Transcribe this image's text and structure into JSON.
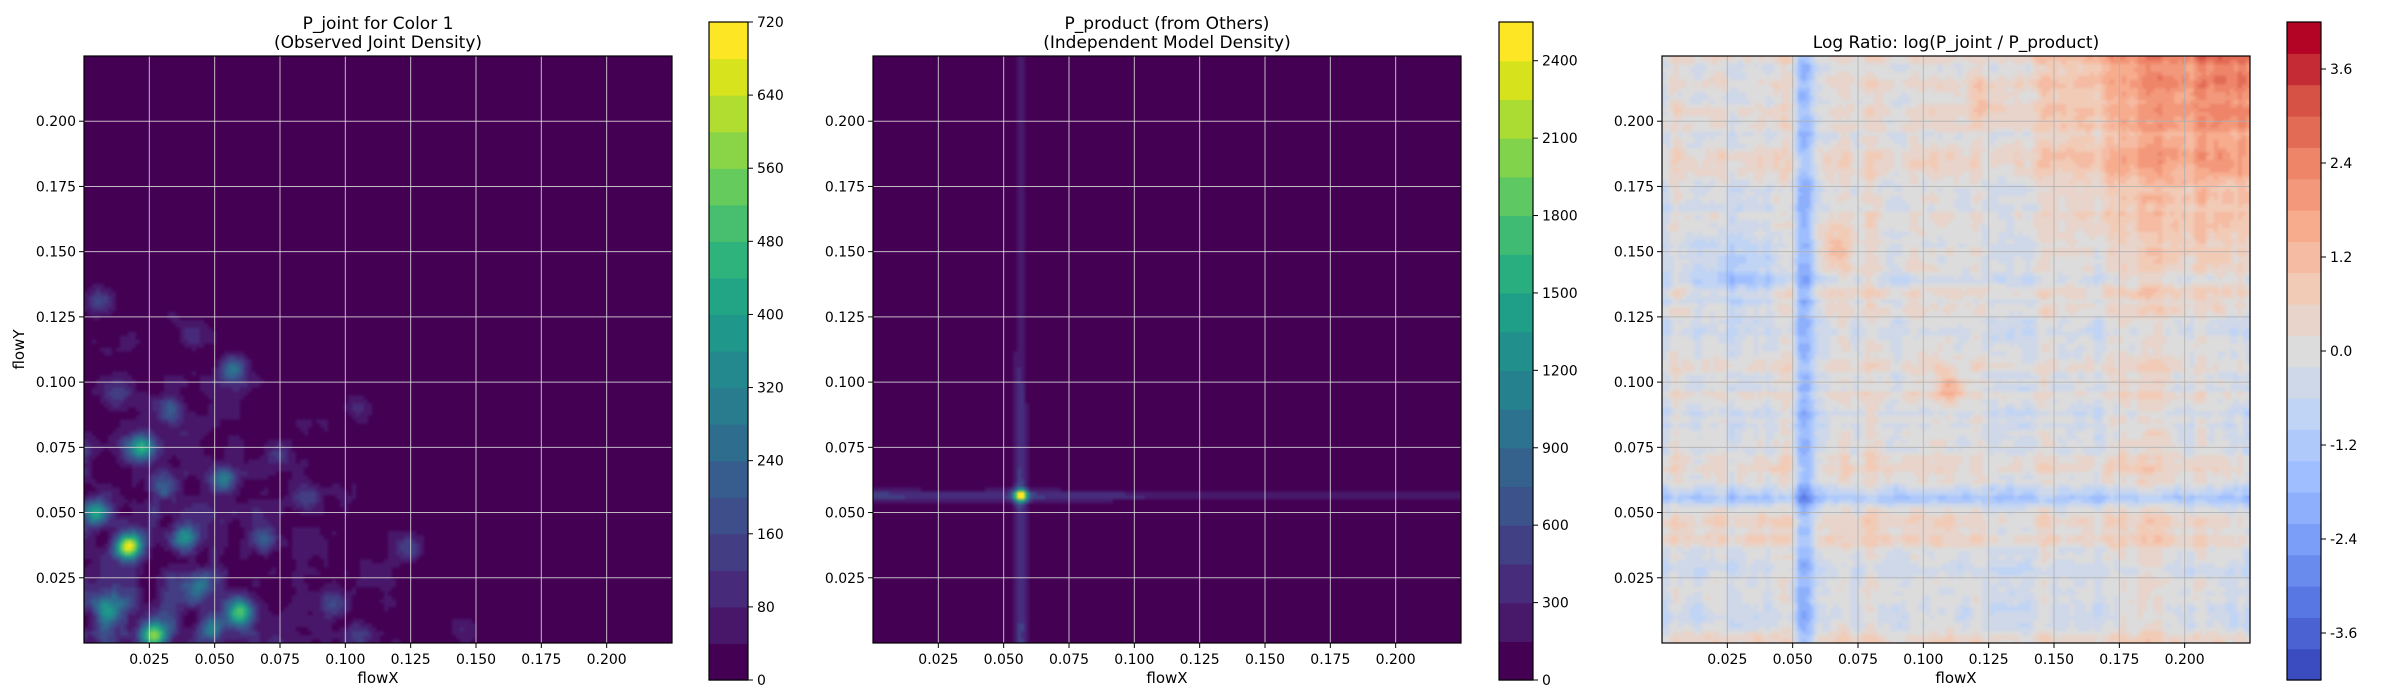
{
  "chart_data": [
    {
      "type": "heatmap",
      "title_lines": [
        "P_joint for Color 1",
        "(Observed Joint Density)"
      ],
      "xlabel": "flowX",
      "ylabel": "flowY",
      "xlim": [
        0.0,
        0.225
      ],
      "ylim": [
        0.0,
        0.225
      ],
      "x_ticks": [
        "0.025",
        "0.050",
        "0.075",
        "0.100",
        "0.125",
        "0.150",
        "0.175",
        "0.200"
      ],
      "y_ticks": [
        "0.025",
        "0.050",
        "0.075",
        "0.100",
        "0.125",
        "0.150",
        "0.175",
        "0.200"
      ],
      "grid": true,
      "colormap": "viridis",
      "colorbar": {
        "min": 0,
        "max": 720,
        "ticks": [
          "0",
          "80",
          "160",
          "240",
          "320",
          "400",
          "480",
          "560",
          "640",
          "720"
        ],
        "levels": 18,
        "colors": [
          "#440154",
          "#481a6c",
          "#472f7d",
          "#414487",
          "#39568c",
          "#31688e",
          "#2a788e",
          "#23888e",
          "#1f988b",
          "#22a884",
          "#35b779",
          "#54c568",
          "#7ad151",
          "#a5db36",
          "#d2e21b",
          "#fde725"
        ]
      },
      "hotspots": [
        {
          "x": 0.017,
          "y": 0.037,
          "v": 640
        },
        {
          "x": 0.022,
          "y": 0.075,
          "v": 380
        },
        {
          "x": 0.027,
          "y": 0.003,
          "v": 520
        },
        {
          "x": 0.005,
          "y": 0.05,
          "v": 340
        },
        {
          "x": 0.06,
          "y": 0.012,
          "v": 430
        },
        {
          "x": 0.053,
          "y": 0.063,
          "v": 300
        },
        {
          "x": 0.038,
          "y": 0.04,
          "v": 310
        },
        {
          "x": 0.043,
          "y": 0.022,
          "v": 250
        },
        {
          "x": 0.057,
          "y": 0.105,
          "v": 260
        },
        {
          "x": 0.033,
          "y": 0.089,
          "v": 200
        },
        {
          "x": 0.01,
          "y": 0.012,
          "v": 230
        },
        {
          "x": 0.006,
          "y": 0.131,
          "v": 160
        },
        {
          "x": 0.095,
          "y": 0.015,
          "v": 150
        },
        {
          "x": 0.124,
          "y": 0.037,
          "v": 140
        },
        {
          "x": 0.085,
          "y": 0.055,
          "v": 130
        },
        {
          "x": 0.07,
          "y": 0.04,
          "v": 170
        },
        {
          "x": 0.048,
          "y": 0.005,
          "v": 210
        },
        {
          "x": 0.03,
          "y": 0.06,
          "v": 190
        },
        {
          "x": 0.012,
          "y": 0.095,
          "v": 130
        },
        {
          "x": 0.042,
          "y": 0.118,
          "v": 90
        },
        {
          "x": 0.105,
          "y": 0.09,
          "v": 90
        },
        {
          "x": 0.075,
          "y": 0.072,
          "v": 120
        },
        {
          "x": 0.105,
          "y": 0.003,
          "v": 130
        },
        {
          "x": 0.145,
          "y": 0.005,
          "v": 70
        }
      ]
    },
    {
      "type": "heatmap",
      "title_lines": [
        "P_product (from Others)",
        "(Independent Model Density)"
      ],
      "xlabel": "flowX",
      "ylabel": "",
      "xlim": [
        0.0,
        0.225
      ],
      "ylim": [
        0.0,
        0.225
      ],
      "x_ticks": [
        "0.025",
        "0.050",
        "0.075",
        "0.100",
        "0.125",
        "0.150",
        "0.175",
        "0.200"
      ],
      "y_ticks": [
        "0.025",
        "0.050",
        "0.075",
        "0.100",
        "0.125",
        "0.150",
        "0.175",
        "0.200"
      ],
      "grid": true,
      "colormap": "viridis",
      "colorbar": {
        "min": 0,
        "max": 2550,
        "ticks": [
          "0",
          "300",
          "600",
          "900",
          "1200",
          "1500",
          "1800",
          "2100",
          "2400"
        ],
        "levels": 17,
        "colors": [
          "#440154",
          "#481a6c",
          "#472f7d",
          "#414487",
          "#39568c",
          "#31688e",
          "#2a788e",
          "#23888e",
          "#1f988b",
          "#22a884",
          "#35b779",
          "#54c568",
          "#7ad151",
          "#a5db36",
          "#d2e21b",
          "#fde725"
        ]
      },
      "cross": {
        "x": 0.0565,
        "y": 0.0565,
        "peak": 2100
      }
    },
    {
      "type": "heatmap",
      "title_lines": [
        "Log Ratio: log(P_joint / P_product)"
      ],
      "xlabel": "flowX",
      "ylabel": "",
      "xlim": [
        0.0,
        0.225
      ],
      "ylim": [
        0.0,
        0.225
      ],
      "x_ticks": [
        "0.025",
        "0.050",
        "0.075",
        "0.100",
        "0.125",
        "0.150",
        "0.175",
        "0.200"
      ],
      "y_ticks": [
        "0.025",
        "0.050",
        "0.075",
        "0.100",
        "0.125",
        "0.150",
        "0.175",
        "0.200"
      ],
      "grid": true,
      "colormap": "coolwarm",
      "colorbar": {
        "min": -4.2,
        "max": 4.2,
        "ticks": [
          "-3.6",
          "-2.4",
          "-1.2",
          "0.0",
          "1.2",
          "2.4",
          "3.6"
        ],
        "levels": 21,
        "colors": [
          "#3b4cc0",
          "#5977e3",
          "#7b9ff9",
          "#9ebeff",
          "#c0d4f5",
          "#dddcdc",
          "#f2cbb7",
          "#f7ac8e",
          "#ee8468",
          "#d65244",
          "#b40426"
        ]
      }
    }
  ]
}
